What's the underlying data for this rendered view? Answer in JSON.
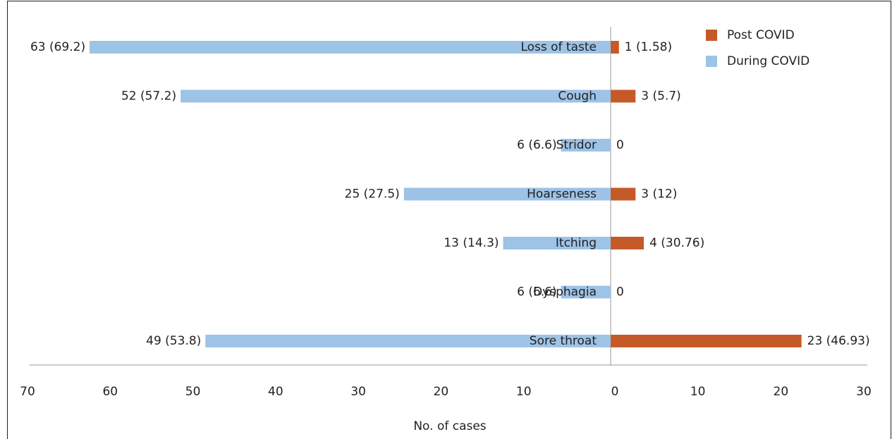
{
  "chart_data": {
    "type": "butterfly",
    "categories": [
      "Loss of taste",
      "Cough",
      "Stridor",
      "Hoarseness",
      "Itching",
      "Dysphagia",
      "Sore throat"
    ],
    "series": [
      {
        "name": "Post COVID",
        "color": "#c55a28",
        "values": [
          1,
          3,
          0,
          3,
          4,
          0,
          23
        ],
        "value_labels": [
          "1 (1.58)",
          "3 (5.7)",
          "0",
          "3 (12)",
          "4 (30.76)",
          "0",
          "23 (46.93)"
        ]
      },
      {
        "name": "During COVID",
        "color": "#9dc3e6",
        "axis": "x2",
        "values": [
          63,
          52,
          6,
          25,
          13,
          6,
          49
        ],
        "value_labels": [
          "63 (69.2)",
          "52 (57.2)",
          "6 (6.6)",
          "25 (27.5)",
          "13 (14.3)",
          "6 (6.6)",
          "49 (53.8)"
        ]
      }
    ],
    "xlim": [
      0,
      30
    ],
    "xticks": [
      0,
      10,
      20,
      30
    ],
    "x2lim": [
      70,
      0
    ],
    "x2ticks": [
      70,
      60,
      50,
      40,
      30,
      20,
      10
    ],
    "xlabel": "No. of cases",
    "legend": "upper right"
  }
}
